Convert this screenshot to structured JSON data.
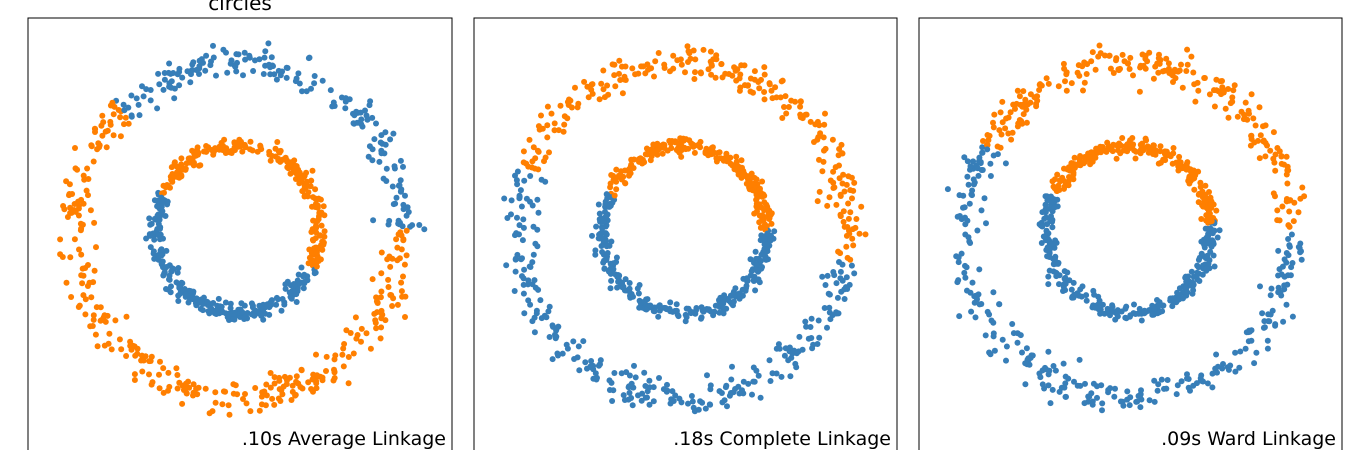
{
  "figure_title": "circles",
  "colors": {
    "cluster_0": "#377eb8",
    "cluster_1": "#ff7f00",
    "frame": "#000000"
  },
  "chart_data": [
    {
      "type": "scatter",
      "label": ".10s Average Linkage",
      "axes_visible": false,
      "xlim": [
        -1.2,
        1.2
      ],
      "ylim": [
        -1.2,
        1.2
      ],
      "grid": false,
      "series": [
        {
          "outer_circle": {
            "radius": 1.0,
            "color_by_angle": [
              {
                "from_deg": 135,
                "to_deg": 360,
                "cluster": 1
              }
            ]
          }
        },
        {
          "inner_circle": {
            "radius": 0.5,
            "color_by_angle": [
              {
                "from_deg": -25,
                "to_deg": 155,
                "cluster": 1
              }
            ]
          }
        }
      ]
    },
    {
      "type": "scatter",
      "label": ".18s Complete Linkage",
      "axes_visible": false,
      "xlim": [
        -1.2,
        1.2
      ],
      "ylim": [
        -1.2,
        1.2
      ],
      "grid": false,
      "series": [
        {
          "outer_circle": {
            "radius": 1.0,
            "color_by_angle": [
              {
                "from_deg": -10,
                "to_deg": 160,
                "cluster": 1
              }
            ]
          }
        },
        {
          "inner_circle": {
            "radius": 0.5,
            "color_by_angle": [
              {
                "from_deg": 0,
                "to_deg": 155,
                "cluster": 1
              }
            ]
          }
        }
      ]
    },
    {
      "type": "scatter",
      "label": ".09s Ward Linkage",
      "axes_visible": false,
      "xlim": [
        -1.2,
        1.2
      ],
      "ylim": [
        -1.2,
        1.2
      ],
      "grid": false,
      "series": [
        {
          "outer_circle": {
            "radius": 1.0,
            "color_by_angle": [
              {
                "from_deg": 0,
                "to_deg": 150,
                "cluster": 1
              }
            ]
          }
        },
        {
          "inner_circle": {
            "radius": 0.5,
            "color_by_angle": [
              {
                "from_deg": 5,
                "to_deg": 155,
                "cluster": 1
              }
            ]
          }
        }
      ]
    }
  ]
}
